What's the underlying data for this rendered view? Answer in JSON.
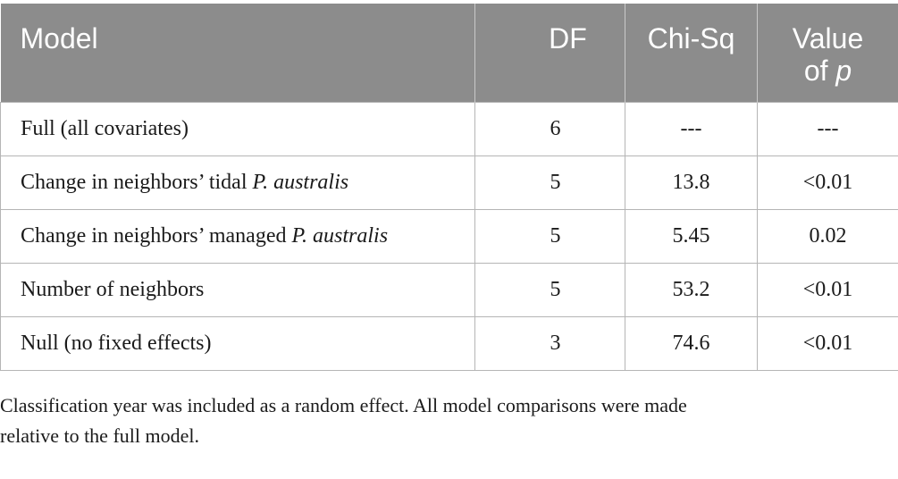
{
  "table": {
    "headers": {
      "model": "Model",
      "df": "DF",
      "chisq": "Chi-Sq",
      "pvalue_line1": "Value",
      "pvalue_line2_prefix": "of ",
      "pvalue_line2_italic": "p"
    },
    "rows": [
      {
        "model": "Full (all covariates)",
        "model_italic": "",
        "df": "6",
        "chisq": "---",
        "p": "---"
      },
      {
        "model": "Change in neighbors’ tidal ",
        "model_italic": "P. australis",
        "df": "5",
        "chisq": "13.8",
        "p": "<0.01"
      },
      {
        "model": "Change in neighbors’ managed ",
        "model_italic": "P. australis",
        "df": "5",
        "chisq": "5.45",
        "p": "0.02"
      },
      {
        "model": "Number of neighbors",
        "model_italic": "",
        "df": "5",
        "chisq": "53.2",
        "p": "<0.01"
      },
      {
        "model": "Null (no fixed effects)",
        "model_italic": "",
        "df": "3",
        "chisq": "74.6",
        "p": "<0.01"
      }
    ]
  },
  "footnote": {
    "line1": "Classification year was included as a random effect. All model comparisons were made",
    "line2": "relative to the full model."
  }
}
